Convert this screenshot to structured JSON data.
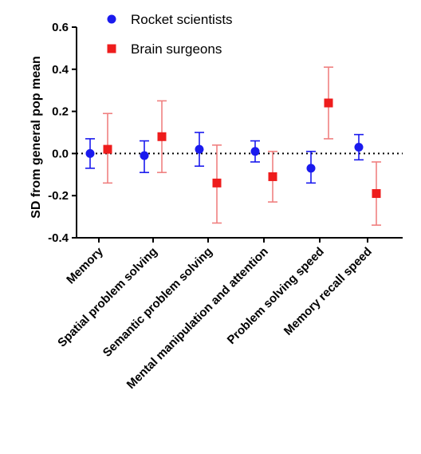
{
  "chart_data": {
    "type": "scatter",
    "title": "",
    "xlabel": "",
    "ylabel": "SD from  general  pop mean",
    "ylim": [
      -0.4,
      0.6
    ],
    "yticks": [
      "0.6",
      "0.4",
      "0.2",
      "0.0",
      "-0.2",
      "-0.4"
    ],
    "yticks_values": [
      0.6,
      0.4,
      0.2,
      0.0,
      -0.2,
      -0.4
    ],
    "reference_line": 0.0,
    "grid": false,
    "legend_position": "top",
    "categories": [
      "Memory",
      "Spatial problem solving",
      "Semantic problem solving",
      "Mental manipulation and attention",
      "Problem solving speed",
      "Memory recall speed"
    ],
    "series": [
      {
        "name": "Rocket scientists",
        "marker": "circle",
        "color": "#1a1aee",
        "values": [
          0.0,
          -0.01,
          0.02,
          0.01,
          -0.07,
          0.03
        ],
        "lower": [
          -0.07,
          -0.09,
          -0.06,
          -0.04,
          -0.14,
          -0.03
        ],
        "upper": [
          0.07,
          0.06,
          0.1,
          0.06,
          0.01,
          0.09
        ]
      },
      {
        "name": "Brain surgeons",
        "marker": "square",
        "color": "#ee1c1c",
        "errcolor": "#f08080",
        "values": [
          0.02,
          0.08,
          -0.14,
          -0.11,
          0.24,
          -0.19
        ],
        "lower": [
          -0.14,
          -0.09,
          -0.33,
          -0.23,
          0.07,
          -0.34
        ],
        "upper": [
          0.19,
          0.25,
          0.04,
          0.01,
          0.41,
          -0.04
        ]
      }
    ]
  }
}
